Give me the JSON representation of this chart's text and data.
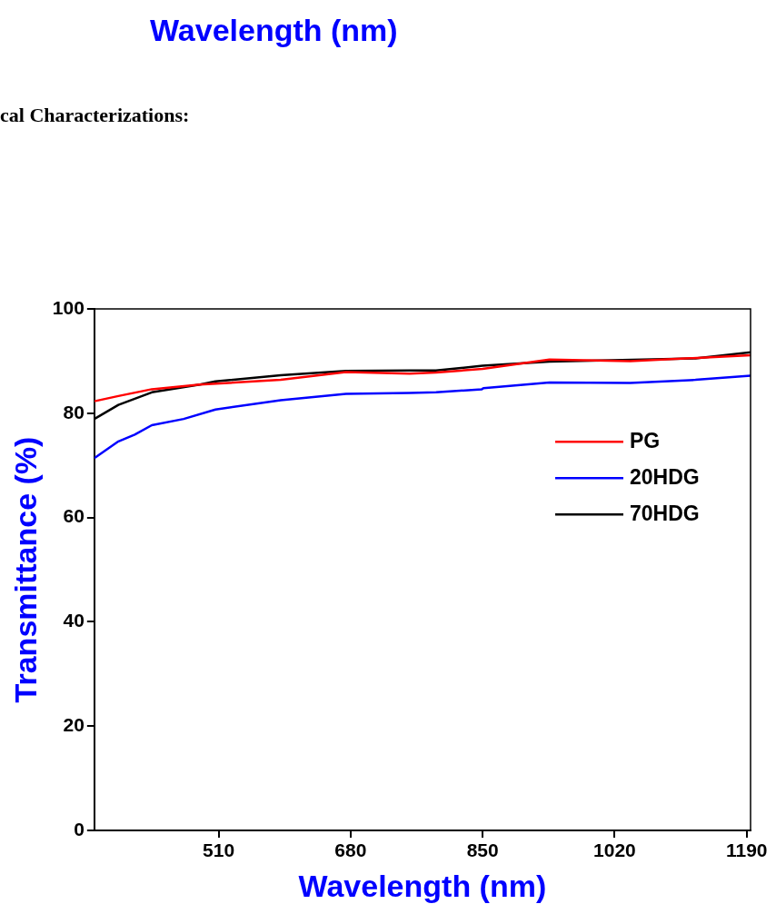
{
  "chart_data": {
    "type": "line",
    "xlabel": "Wavelength (nm)",
    "ylabel": "Transmittance (%)",
    "annotations": [
      "Wavelength (nm)",
      "cal Characterizations:"
    ],
    "xlim": [
      350,
      1195
    ],
    "xticks": [
      510,
      680,
      850,
      1020,
      1190
    ],
    "ylim": [
      0,
      100
    ],
    "yticks": [
      0,
      20,
      40,
      60,
      80,
      100
    ],
    "grid": false,
    "legend": "right",
    "marker": "none",
    "line_style": "solid",
    "series": [
      {
        "name": "PG",
        "color": "#ff0000",
        "x": [
          350,
          381,
          424,
          486,
          590,
          674,
          756,
          790,
          850,
          936,
          1040,
          1195
        ],
        "values": [
          82.3,
          83.3,
          84.6,
          85.5,
          86.4,
          87.9,
          87.6,
          87.8,
          88.5,
          90.3,
          90.0,
          91.1
        ]
      },
      {
        "name": "20HDG",
        "color": "#0000ff",
        "x": [
          350,
          381,
          402,
          424,
          465,
          506,
          590,
          674,
          756,
          790,
          849,
          851,
          936,
          1040,
          1124,
          1195
        ],
        "values": [
          71.4,
          74.6,
          75.9,
          77.7,
          78.9,
          80.7,
          82.5,
          83.7,
          83.9,
          84.0,
          84.6,
          84.8,
          85.9,
          85.8,
          86.4,
          87.2
        ]
      },
      {
        "name": "70HDG",
        "color": "#000000",
        "x": [
          350,
          381,
          424,
          486,
          506,
          590,
          674,
          756,
          790,
          850,
          936,
          1124,
          1195
        ],
        "values": [
          78.9,
          81.6,
          84.0,
          85.5,
          86.1,
          87.3,
          88.1,
          88.2,
          88.2,
          89.1,
          89.9,
          90.5,
          91.7
        ]
      }
    ]
  }
}
